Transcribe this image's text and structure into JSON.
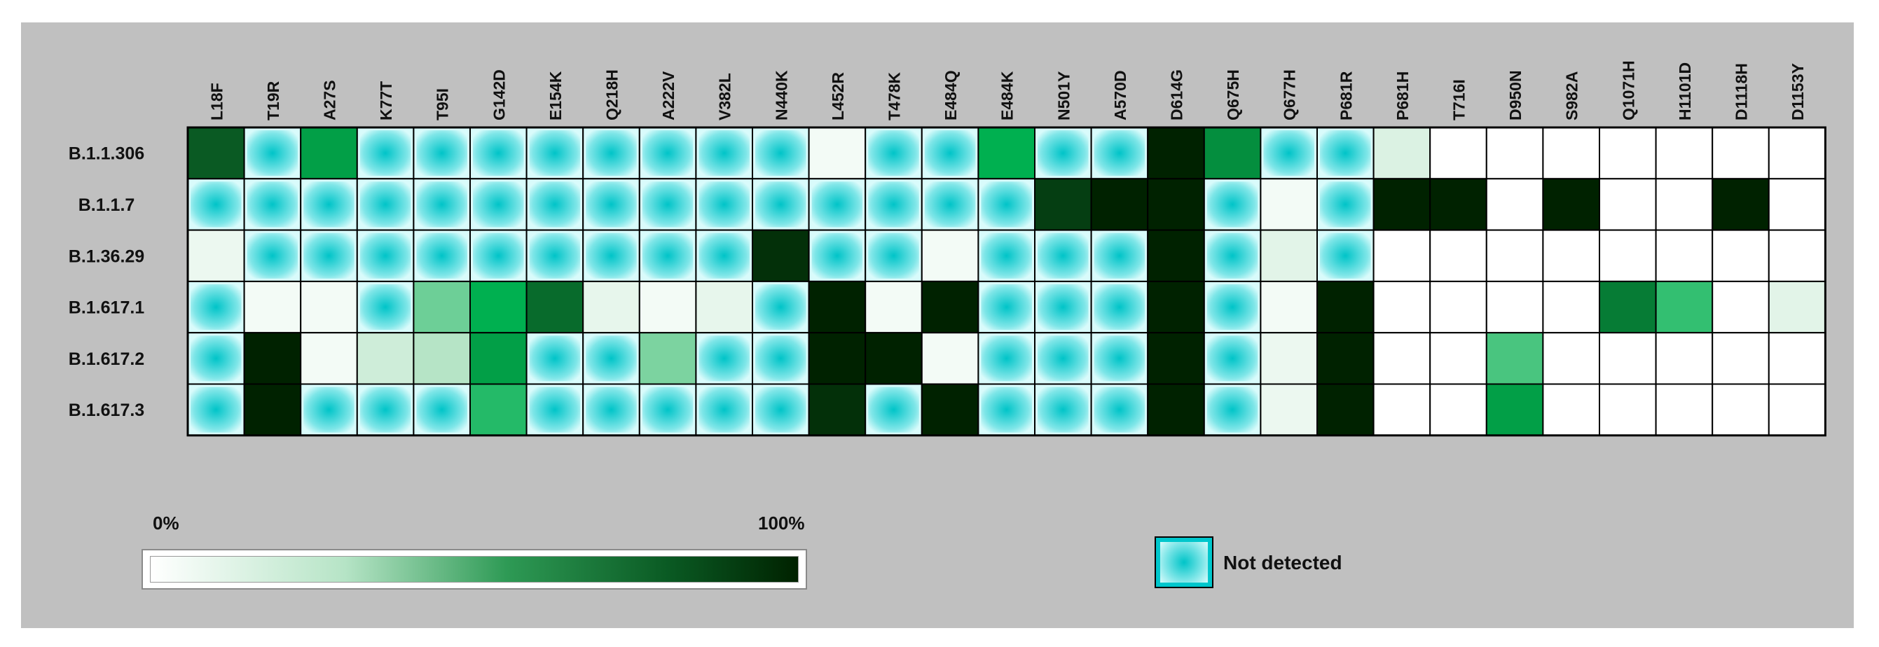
{
  "chart_data": {
    "type": "heatmap",
    "columns": [
      "L18F",
      "T19R",
      "A27S",
      "K77T",
      "T95I",
      "G142D",
      "E154K",
      "Q218H",
      "A222V",
      "V382L",
      "N440K",
      "L452R",
      "T478K",
      "E484Q",
      "E484K",
      "N501Y",
      "A570D",
      "D614G",
      "Q675H",
      "Q677H",
      "P681R",
      "P681H",
      "T716I",
      "D950N",
      "S982A",
      "Q1071H",
      "H1101D",
      "D1118H",
      "D1153Y"
    ],
    "rows": [
      "B.1.1.306",
      "B.1.1.7",
      "B.1.36.29",
      "B.1.617.1",
      "B.1.617.2",
      "B.1.617.3"
    ],
    "not_detected_marker": "ND",
    "values": [
      [
        80,
        "ND",
        60,
        "ND",
        "ND",
        "ND",
        "ND",
        "ND",
        "ND",
        "ND",
        "ND",
        5,
        "ND",
        "ND",
        55,
        "ND",
        "ND",
        100,
        65,
        "ND",
        "ND",
        15,
        0,
        0,
        0,
        0,
        0,
        0,
        0
      ],
      [
        "ND",
        "ND",
        "ND",
        "ND",
        "ND",
        "ND",
        "ND",
        "ND",
        "ND",
        "ND",
        "ND",
        "ND",
        "ND",
        "ND",
        "ND",
        90,
        100,
        100,
        "ND",
        5,
        "ND",
        100,
        100,
        0,
        100,
        0,
        0,
        100,
        0
      ],
      [
        8,
        "ND",
        "ND",
        "ND",
        "ND",
        "ND",
        "ND",
        "ND",
        "ND",
        "ND",
        95,
        "ND",
        "ND",
        5,
        "ND",
        "ND",
        "ND",
        100,
        "ND",
        12,
        "ND",
        0,
        0,
        0,
        0,
        0,
        0,
        0,
        0
      ],
      [
        "ND",
        5,
        5,
        "ND",
        40,
        55,
        75,
        10,
        5,
        10,
        "ND",
        100,
        5,
        100,
        "ND",
        "ND",
        "ND",
        100,
        "ND",
        5,
        100,
        0,
        0,
        0,
        0,
        70,
        48,
        0,
        12
      ],
      [
        "ND",
        100,
        5,
        20,
        30,
        60,
        "ND",
        "ND",
        38,
        "ND",
        "ND",
        100,
        100,
        5,
        "ND",
        "ND",
        "ND",
        100,
        "ND",
        8,
        100,
        0,
        0,
        45,
        0,
        0,
        0,
        0,
        0
      ],
      [
        "ND",
        100,
        "ND",
        "ND",
        "ND",
        50,
        "ND",
        "ND",
        "ND",
        "ND",
        "ND",
        95,
        "ND",
        100,
        "ND",
        "ND",
        "ND",
        100,
        "ND",
        8,
        100,
        0,
        0,
        60,
        0,
        0,
        0,
        0,
        0
      ]
    ],
    "colorbar": {
      "min_label": "0%",
      "max_label": "100%",
      "range": [
        0,
        100
      ]
    },
    "legend": {
      "not_detected_label": "Not detected"
    }
  },
  "colors": {
    "scale_low": "#ffffff",
    "scale_high": "#002200",
    "not_detected_center": "#00c4c8",
    "not_detected_edge": "#d9fbfb",
    "background": "#c0c0c0",
    "grid": "#000000"
  }
}
